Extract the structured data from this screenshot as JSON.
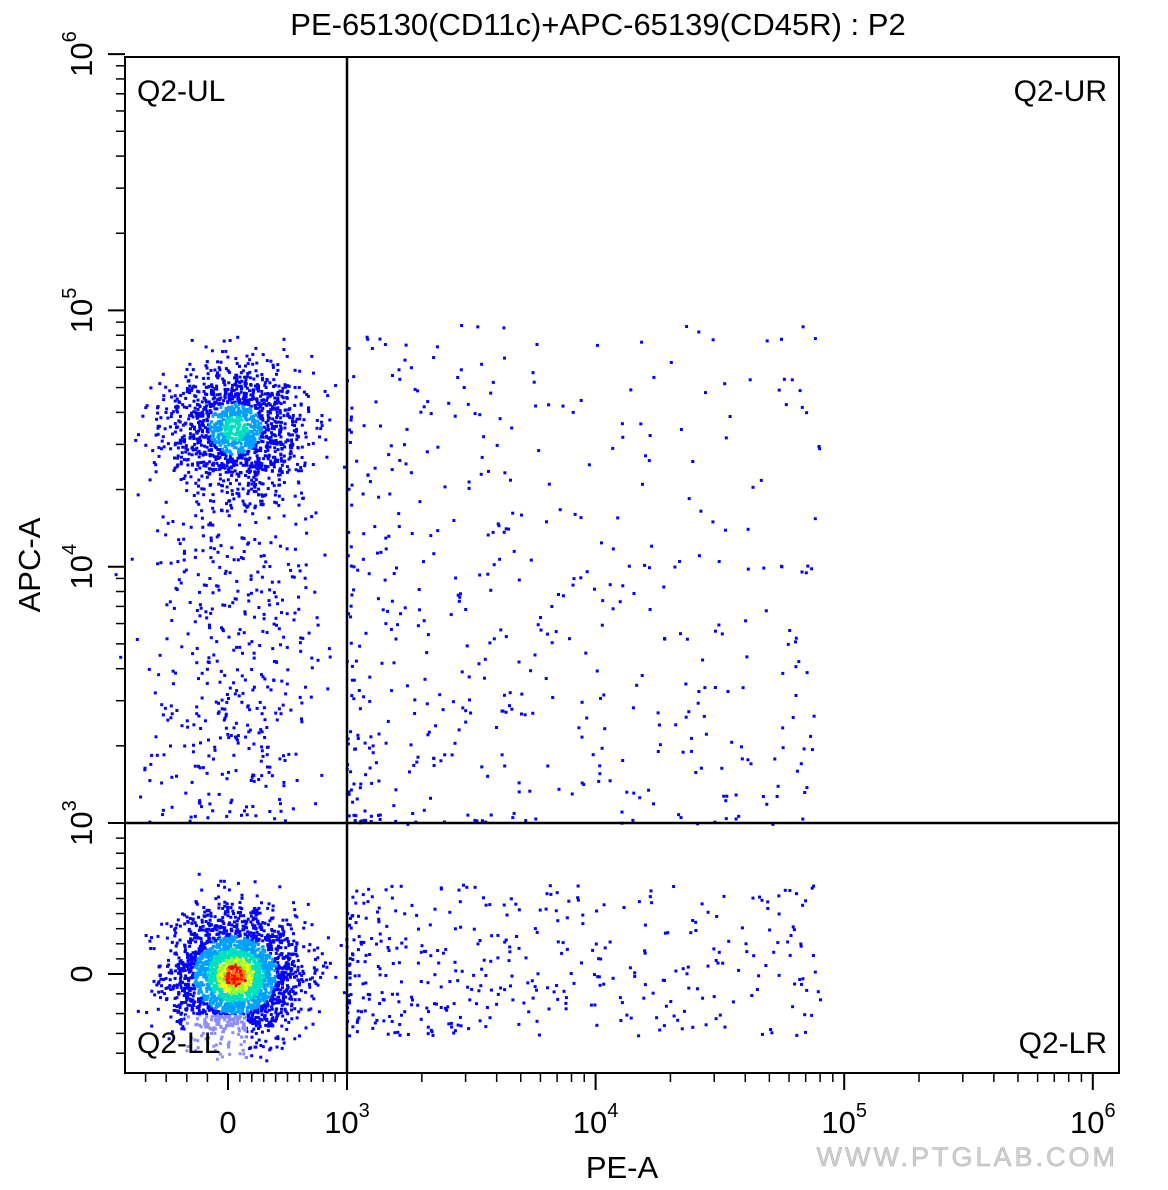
{
  "chart_data": {
    "type": "scatter",
    "title": "PE-65130(CD11c)+APC-65139(CD45R) : P2",
    "xlabel": "PE-A",
    "ylabel": "APC-A",
    "x_scale": "biexponential",
    "y_scale": "biexponential",
    "xlim": [
      -500,
      1000000
    ],
    "ylim": [
      -500,
      1000000
    ],
    "x_ticks": [
      {
        "value": 0,
        "base": "0",
        "exp": ""
      },
      {
        "value": 1000,
        "base": "10",
        "exp": "3"
      },
      {
        "value": 10000,
        "base": "10",
        "exp": "4"
      },
      {
        "value": 100000,
        "base": "10",
        "exp": "5"
      },
      {
        "value": 1000000,
        "base": "10",
        "exp": "6"
      }
    ],
    "y_ticks": [
      {
        "value": 0,
        "base": "0",
        "exp": ""
      },
      {
        "value": 1000,
        "base": "10",
        "exp": "3"
      },
      {
        "value": 10000,
        "base": "10",
        "exp": "4"
      },
      {
        "value": 100000,
        "base": "10",
        "exp": "5"
      },
      {
        "value": 1000000,
        "base": "10",
        "exp": "6"
      }
    ],
    "quadrant_gate": {
      "x": 1000,
      "y": 1000
    },
    "quadrant_labels": {
      "UL": "Q2-UL",
      "UR": "Q2-UR",
      "LL": "Q2-LL",
      "LR": "Q2-LR"
    },
    "populations": [
      {
        "name": "Q2-LL",
        "center_x": 50,
        "center_y": 0,
        "density": "high"
      },
      {
        "name": "Q2-UL",
        "center_x": 50,
        "center_y": 35000,
        "density": "high"
      },
      {
        "name": "Q2-UR/LR",
        "x_range": [
          1000,
          80000
        ],
        "y_range": [
          -300,
          90000
        ],
        "density": "sparse"
      }
    ],
    "density_colors": [
      "#0000ff",
      "#00a0ff",
      "#00e0c0",
      "#80ff40",
      "#ffff00",
      "#ff8000",
      "#ff0000"
    ],
    "grid": false,
    "legend": "none"
  },
  "watermark": "WWW.PTGLAB.COM"
}
